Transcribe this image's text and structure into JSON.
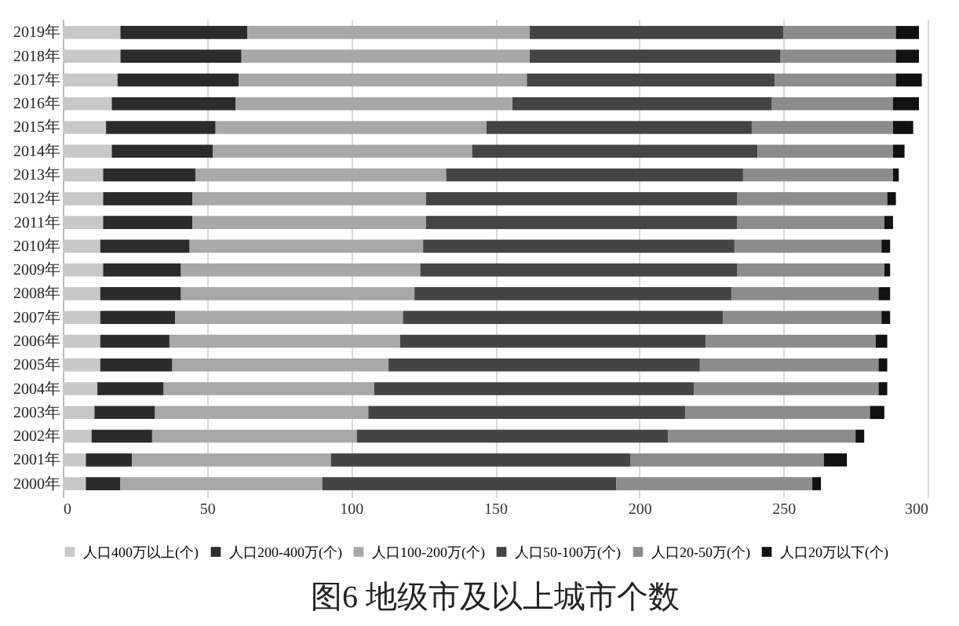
{
  "chart_data": {
    "type": "bar",
    "orientation": "horizontal",
    "stacked": true,
    "title": "图6  地级市及以上城市个数",
    "categories": [
      "2019年",
      "2018年",
      "2017年",
      "2016年",
      "2015年",
      "2014年",
      "2013年",
      "2012年",
      "2011年",
      "2010年",
      "2009年",
      "2008年",
      "2007年",
      "2006年",
      "2005年",
      "2004年",
      "2003年",
      "2002年",
      "2001年",
      "2000年"
    ],
    "series": [
      {
        "name": "人口400万以上(个)",
        "color": "#c8c8c8",
        "values": [
          20,
          20,
          19,
          17,
          15,
          17,
          14,
          14,
          14,
          13,
          14,
          13,
          13,
          13,
          13,
          12,
          11,
          10,
          8,
          8
        ]
      },
      {
        "name": "人口200-400万(个)",
        "color": "#2b2b2b",
        "values": [
          44,
          42,
          42,
          43,
          38,
          35,
          32,
          31,
          31,
          31,
          27,
          28,
          26,
          24,
          25,
          23,
          21,
          21,
          16,
          12
        ]
      },
      {
        "name": "人口100-200万(个)",
        "color": "#a8a8a8",
        "values": [
          98,
          100,
          100,
          96,
          94,
          90,
          87,
          81,
          81,
          81,
          83,
          81,
          79,
          80,
          75,
          73,
          74,
          71,
          69,
          70
        ]
      },
      {
        "name": "人口50-100万(个)",
        "color": "#444444",
        "values": [
          88,
          87,
          86,
          90,
          92,
          99,
          103,
          108,
          108,
          108,
          110,
          110,
          111,
          106,
          108,
          111,
          110,
          108,
          104,
          102
        ]
      },
      {
        "name": "人口20-50万(个)",
        "color": "#8c8c8c",
        "values": [
          39,
          40,
          42,
          42,
          49,
          47,
          52,
          52,
          51,
          51,
          51,
          51,
          55,
          59,
          62,
          64,
          64,
          65,
          67,
          68
        ]
      },
      {
        "name": "人口20万以下(个)",
        "color": "#111111",
        "values": [
          8,
          8,
          9,
          9,
          7,
          4,
          2,
          3,
          3,
          3,
          2,
          4,
          3,
          4,
          3,
          3,
          5,
          3,
          8,
          3
        ]
      }
    ],
    "xlim": [
      0,
      300
    ],
    "xticks": [
      0,
      50,
      100,
      150,
      200,
      250,
      300
    ],
    "grid": "x",
    "legend": "bottom"
  }
}
